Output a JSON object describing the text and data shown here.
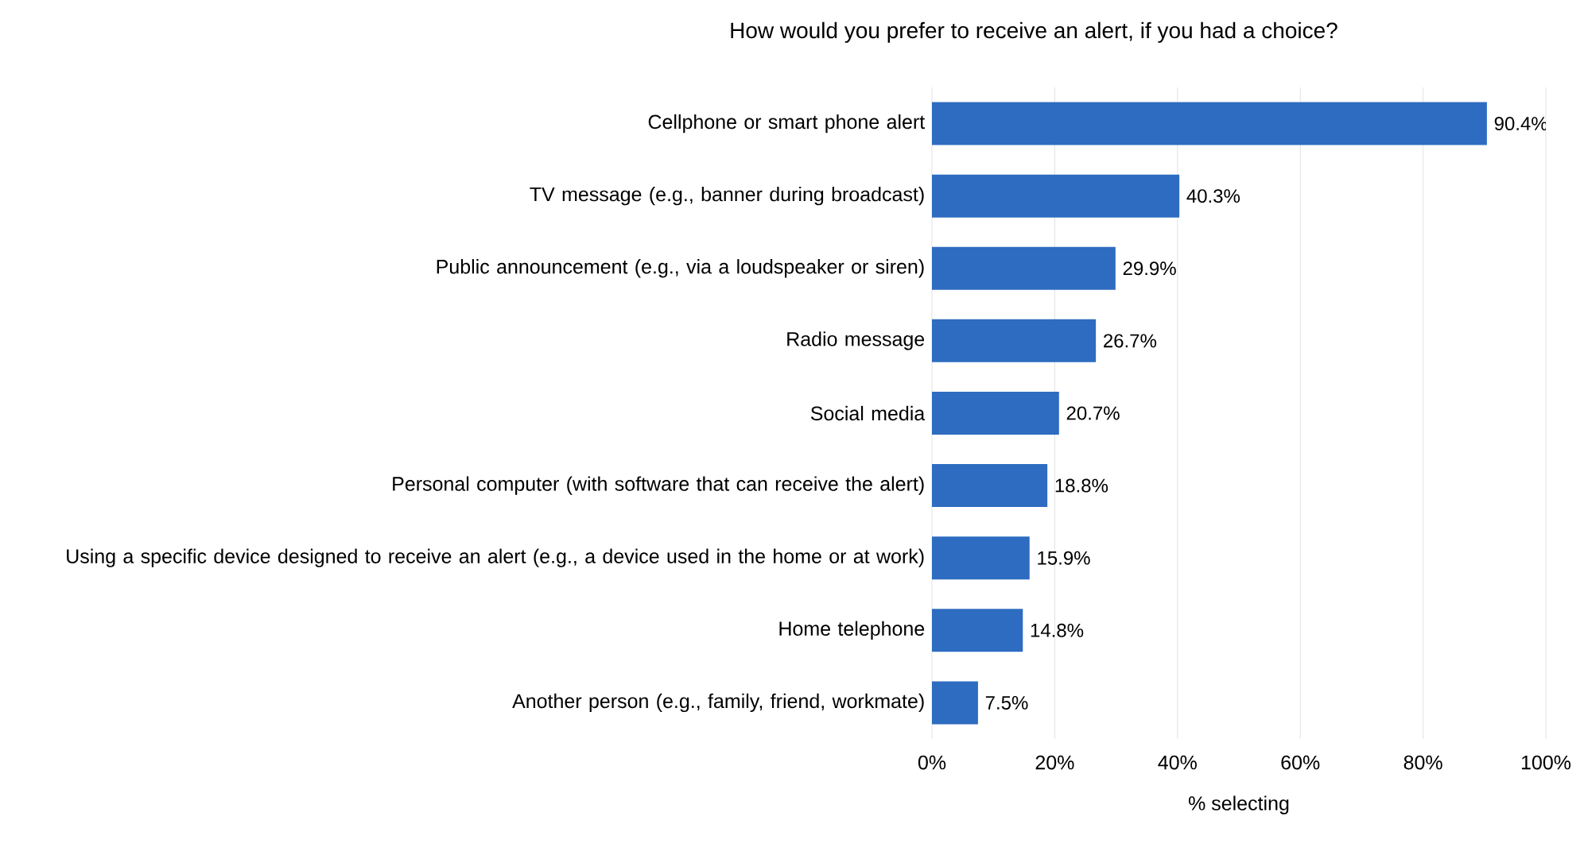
{
  "chart_data": {
    "type": "bar",
    "orientation": "horizontal",
    "title": "How would you prefer to receive an alert, if you had a choice?",
    "xlabel": "% selecting",
    "categories": [
      "Cellphone or smart phone alert",
      "TV message (e.g., banner during broadcast)",
      "Public announcement (e.g., via a loudspeaker or siren)",
      "Radio message",
      "Social media",
      "Personal computer (with software that can receive the alert)",
      "Using a specific device designed to receive an alert (e.g., a device used in the home or at work)",
      "Home telephone",
      "Another person (e.g., family, friend, workmate)"
    ],
    "values": [
      90.4,
      40.3,
      29.9,
      26.7,
      20.7,
      18.8,
      15.9,
      14.8,
      7.5
    ],
    "value_labels": [
      "90.4%",
      "40.3%",
      "29.9%",
      "26.7%",
      "20.7%",
      "18.8%",
      "15.9%",
      "14.8%",
      "7.5%"
    ],
    "color": "#2d6cc0",
    "xlim": [
      0,
      100
    ],
    "xticks": [
      {
        "value": 0,
        "label": "0%"
      },
      {
        "value": 20,
        "label": "20%"
      },
      {
        "value": 40,
        "label": "40%"
      },
      {
        "value": 60,
        "label": "60%"
      },
      {
        "value": 80,
        "label": "80%"
      },
      {
        "value": 100,
        "label": "100%"
      }
    ],
    "grid": "x"
  }
}
